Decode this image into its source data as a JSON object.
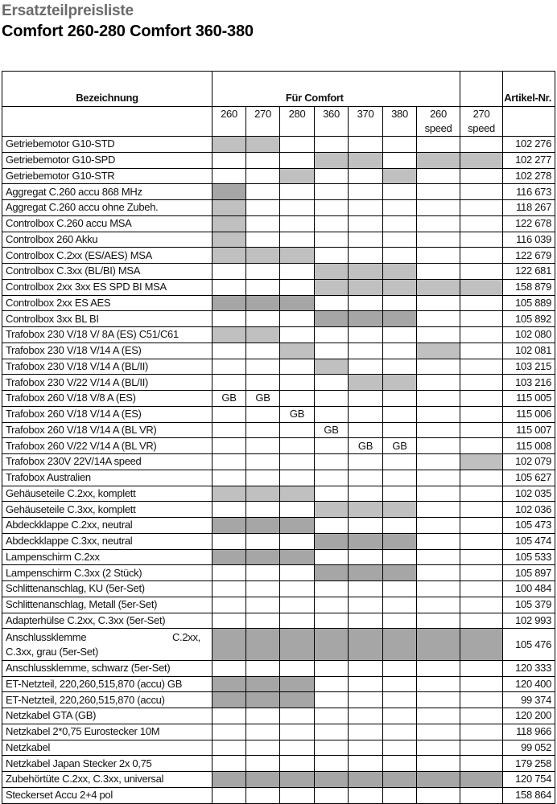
{
  "title": "Ersatzteilpreisliste",
  "subtitle": "Comfort 260-280 Comfort 360-380",
  "table": {
    "header_name": "Bezeichnung",
    "header_group": "Für Comfort",
    "header_article": "Artikel-Nr.",
    "models": [
      "260",
      "270",
      "280",
      "360",
      "370",
      "380",
      "260 speed",
      "270 speed"
    ],
    "shade_colors": {
      "L": "#c0c0c0",
      "D": "#a6a6a6"
    },
    "rows": [
      {
        "name": "Getriebemotor G10-STD",
        "cells": [
          "L",
          "L",
          "",
          "",
          "",
          "",
          "",
          ""
        ],
        "art": "102 276"
      },
      {
        "name": "Getriebemotor G10-SPD",
        "cells": [
          "",
          "",
          "",
          "L",
          "L",
          "",
          "L",
          "L"
        ],
        "art": "102 277"
      },
      {
        "name": "Getriebemotor G10-STR",
        "cells": [
          "",
          "",
          "L",
          "",
          "",
          "L",
          "",
          ""
        ],
        "art": "102 278"
      },
      {
        "name": "Aggregat C.260 accu 868 MHz",
        "cells": [
          "D",
          "",
          "",
          "",
          "",
          "",
          "",
          ""
        ],
        "art": "116 673"
      },
      {
        "name": "Aggregat C.260 accu ohne Zubeh.",
        "cells": [
          "L",
          "",
          "",
          "",
          "",
          "",
          "",
          ""
        ],
        "art": "118 267"
      },
      {
        "name": "Controlbox C.260 accu MSA",
        "cells": [
          "L",
          "",
          "",
          "",
          "",
          "",
          "",
          ""
        ],
        "art": "122 678"
      },
      {
        "name": "Controlbox 260 Akku",
        "cells": [
          "L",
          "",
          "",
          "",
          "",
          "",
          "",
          ""
        ],
        "art": "116 039"
      },
      {
        "name": "Controlbox C.2xx (ES/AES) MSA",
        "cells": [
          "L",
          "L",
          "L",
          "",
          "",
          "",
          "",
          ""
        ],
        "art": "122 679"
      },
      {
        "name": "Controlbox C.3xx (BL/BI) MSA",
        "cells": [
          "",
          "",
          "",
          "L",
          "L",
          "L",
          "",
          ""
        ],
        "art": "122 681"
      },
      {
        "name": "Controlbox 2xx 3xx ES SPD BI MSA",
        "cells": [
          "",
          "",
          "",
          "L",
          "L",
          "L",
          "L",
          "L"
        ],
        "art": "158 879"
      },
      {
        "name": "Controlbox 2xx ES AES",
        "cells": [
          "D",
          "D",
          "D",
          "",
          "",
          "",
          "",
          ""
        ],
        "art": "105 889"
      },
      {
        "name": "Controlbox 3xx BL BI",
        "cells": [
          "",
          "",
          "",
          "D",
          "D",
          "D",
          "",
          ""
        ],
        "art": "105 892"
      },
      {
        "name": "Trafobox 230 V/18 V/ 8A (ES) C51/C61",
        "cells": [
          "L",
          "L",
          "",
          "",
          "",
          "",
          "",
          ""
        ],
        "art": "102 080"
      },
      {
        "name": "Trafobox 230 V/18 V/14 A (ES)",
        "cells": [
          "",
          "",
          "L",
          "",
          "",
          "",
          "L",
          ""
        ],
        "art": "102 081"
      },
      {
        "name": "Trafobox 230 V/18 V/14 A (BL/II)",
        "cells": [
          "",
          "",
          "",
          "L",
          "",
          "",
          "",
          ""
        ],
        "art": "103 215"
      },
      {
        "name": "Trafobox 230 V/22 V/14 A (BL/II)",
        "cells": [
          "",
          "",
          "",
          "",
          "L",
          "L",
          "",
          ""
        ],
        "art": "103 216"
      },
      {
        "name": "Trafobox 260 V/18 V/8 A (ES)",
        "cells": [
          "GB",
          "GB",
          "",
          "",
          "",
          "",
          "",
          ""
        ],
        "art": "115 005"
      },
      {
        "name": "Trafobox 260 V/18 V/14 A (ES)",
        "cells": [
          "",
          "",
          "GB",
          "",
          "",
          "",
          "",
          ""
        ],
        "art": "115 006"
      },
      {
        "name": "Trafobox 260 V/18 V/14 A (BL VR)",
        "cells": [
          "",
          "",
          "",
          "GB",
          "",
          "",
          "",
          ""
        ],
        "art": "115 007"
      },
      {
        "name": "Trafobox 260 V/22 V/14 A (BL VR)",
        "cells": [
          "",
          "",
          "",
          "",
          "GB",
          "GB",
          "",
          ""
        ],
        "art": "115 008"
      },
      {
        "name": "Trafobox 230V 22V/14A speed",
        "cells": [
          "",
          "",
          "",
          "",
          "",
          "",
          "",
          "L"
        ],
        "art": "102 079"
      },
      {
        "name": "Trafobox Australien",
        "cells": [
          "",
          "",
          "",
          "",
          "",
          "",
          "",
          ""
        ],
        "art": "105 627"
      },
      {
        "name": "Gehäuseteile C.2xx, komplett",
        "cells": [
          "L",
          "L",
          "L",
          "",
          "",
          "",
          "",
          ""
        ],
        "art": "102 035"
      },
      {
        "name": "Gehäuseteile C.3xx, komplett",
        "cells": [
          "",
          "",
          "",
          "L",
          "L",
          "L",
          "",
          ""
        ],
        "art": "102 036"
      },
      {
        "name": "Abdeckklappe C.2xx, neutral",
        "cells": [
          "D",
          "D",
          "D",
          "",
          "",
          "",
          "",
          ""
        ],
        "art": "105 473"
      },
      {
        "name": "Abdeckklappe C.3xx, neutral",
        "cells": [
          "",
          "",
          "",
          "D",
          "D",
          "D",
          "",
          ""
        ],
        "art": "105 474"
      },
      {
        "name": "Lampenschirm C.2xx",
        "cells": [
          "D",
          "D",
          "D",
          "",
          "",
          "",
          "",
          ""
        ],
        "art": "105 533"
      },
      {
        "name": "Lampenschirm C.3xx (2 Stück)",
        "cells": [
          "",
          "",
          "",
          "D",
          "D",
          "D",
          "",
          ""
        ],
        "art": "105 897"
      },
      {
        "name": "Schlittenanschlag, KU (5er-Set)",
        "cells": [
          "",
          "",
          "",
          "",
          "",
          "",
          "",
          ""
        ],
        "art": "100 484"
      },
      {
        "name": "Schlittenanschlag, Metall (5er-Set)",
        "cells": [
          "",
          "",
          "",
          "",
          "",
          "",
          "",
          ""
        ],
        "art": "105 379"
      },
      {
        "name": "Adapterhülse C.2xx, C.3xx (5er-Set)",
        "cells": [
          "",
          "",
          "",
          "",
          "",
          "",
          "",
          ""
        ],
        "art": "102 993"
      },
      {
        "name": "Anschlussklemme C.2xx, C.3xx, grau (5er-Set)",
        "name_line1a": "Anschlussklemme",
        "name_line1b": "C.2xx,",
        "name_line2": "C.3xx, grau (5er-Set)",
        "cells": [
          "D",
          "D",
          "D",
          "D",
          "D",
          "D",
          "D",
          "D"
        ],
        "art": "105 476"
      },
      {
        "name": "Anschlussklemme, schwarz (5er-Set)",
        "cells": [
          "",
          "",
          "",
          "",
          "",
          "",
          "",
          ""
        ],
        "art": "120 333"
      },
      {
        "name": "ET-Netzteil, 220,260,515,870 (accu) GB",
        "cells": [
          "D",
          "D",
          "D",
          "",
          "",
          "",
          "",
          ""
        ],
        "art": "120 400"
      },
      {
        "name": "ET-Netzteil, 220,260,515,870 (accu)",
        "cells": [
          "D",
          "D",
          "D",
          "",
          "",
          "",
          "",
          ""
        ],
        "art": "99 374"
      },
      {
        "name": "Netzkabel GTA (GB)",
        "cells": [
          "",
          "",
          "",
          "",
          "",
          "",
          "",
          ""
        ],
        "art": "120 200"
      },
      {
        "name": "Netzkabel 2*0,75 Eurostecker 10M",
        "cells": [
          "",
          "",
          "",
          "",
          "",
          "",
          "",
          ""
        ],
        "art": "118 966"
      },
      {
        "name": "Netzkabel",
        "cells": [
          "",
          "",
          "",
          "",
          "",
          "",
          "",
          ""
        ],
        "art": "99 052"
      },
      {
        "name": "Netzkabel Japan Stecker 2x 0,75",
        "cells": [
          "",
          "",
          "",
          "",
          "",
          "",
          "",
          ""
        ],
        "art": "179 258"
      },
      {
        "name": "Zubehörtüte C.2xx, C.3xx, universal",
        "cells": [
          "D",
          "D",
          "D",
          "D",
          "D",
          "D",
          "D",
          "D"
        ],
        "art": "120 754"
      },
      {
        "name": "Steckerset Accu 2+4 pol",
        "cells": [
          "",
          "",
          "",
          "",
          "",
          "",
          "",
          ""
        ],
        "art": "158 864"
      }
    ]
  }
}
